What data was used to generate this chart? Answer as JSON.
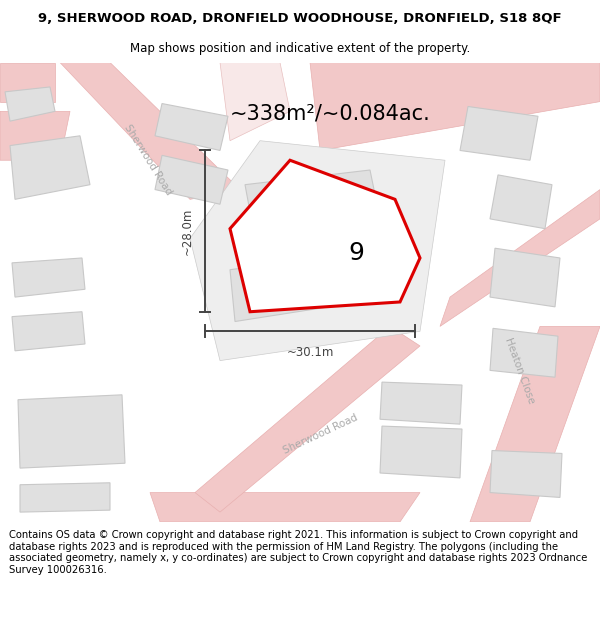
{
  "title_line1": "9, SHERWOOD ROAD, DRONFIELD WOODHOUSE, DRONFIELD, S18 8QF",
  "title_line2": "Map shows position and indicative extent of the property.",
  "area_text": "~338m²/~0.084ac.",
  "number_label": "9",
  "dim_vertical": "~28.0m",
  "dim_horizontal": "~30.1m",
  "footer_text": "Contains OS data © Crown copyright and database right 2021. This information is subject to Crown copyright and database rights 2023 and is reproduced with the permission of HM Land Registry. The polygons (including the associated geometry, namely x, y co-ordinates) are subject to Crown copyright and database rights 2023 Ordnance Survey 100026316.",
  "road_color": "#f2c8c8",
  "road_outline": "#e8b0b0",
  "building_fill": "#e0e0e0",
  "building_ec": "#c8c8c8",
  "plot_outline_fill": "#ececec",
  "plot_outline_ec": "#d0d0d0",
  "property_stroke": "#dd0000",
  "dim_color": "#444444",
  "road_label_color": "#aaaaaa",
  "title_fontsize": 9.5,
  "subtitle_fontsize": 8.5,
  "area_fontsize": 16,
  "number_fontsize": 16,
  "footer_fontsize": 7.2,
  "map_bg": "#ffffff"
}
